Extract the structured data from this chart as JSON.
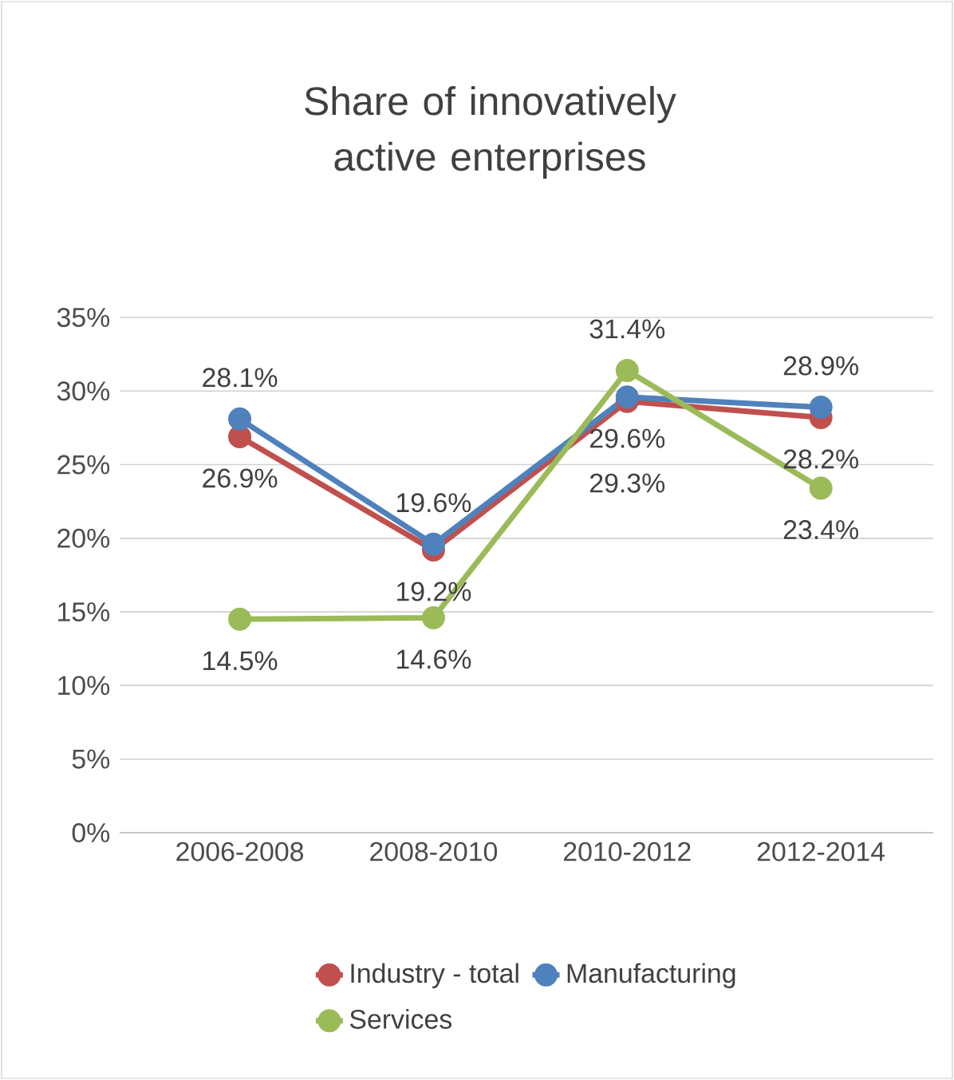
{
  "chart_data": {
    "type": "line",
    "title": "Share of innovatively active enterprises",
    "categories": [
      "2006-2008",
      "2008-2010",
      "2010-2012",
      "2012-2014"
    ],
    "ylim": [
      0,
      35
    ],
    "yticks": [
      {
        "value": 0,
        "label": "0%"
      },
      {
        "value": 5,
        "label": "5%"
      },
      {
        "value": 10,
        "label": "10%"
      },
      {
        "value": 15,
        "label": "15%"
      },
      {
        "value": 20,
        "label": "20%"
      },
      {
        "value": 25,
        "label": "25%"
      },
      {
        "value": 30,
        "label": "30%"
      },
      {
        "value": 35,
        "label": "35%"
      }
    ],
    "grid": "y",
    "legend": "bottom",
    "marker": "circle",
    "line_style": "solid",
    "series": [
      {
        "name": "Industry - total",
        "color": "#c0504d",
        "values": [
          26.9,
          19.2,
          29.3,
          28.2
        ],
        "value_labels": [
          "26.9%",
          "19.2%",
          "29.3%",
          "28.2%"
        ]
      },
      {
        "name": "Manufacturing",
        "color": "#4f81bd",
        "values": [
          28.1,
          19.6,
          29.6,
          28.9
        ],
        "value_labels": [
          "28.1%",
          "19.6%",
          "29.6%",
          "28.9%"
        ]
      },
      {
        "name": "Services",
        "color": "#9bbb59",
        "values": [
          14.5,
          14.6,
          31.4,
          23.4
        ],
        "value_labels": [
          "14.5%",
          "14.6%",
          "31.4%",
          "23.4%"
        ]
      }
    ]
  }
}
